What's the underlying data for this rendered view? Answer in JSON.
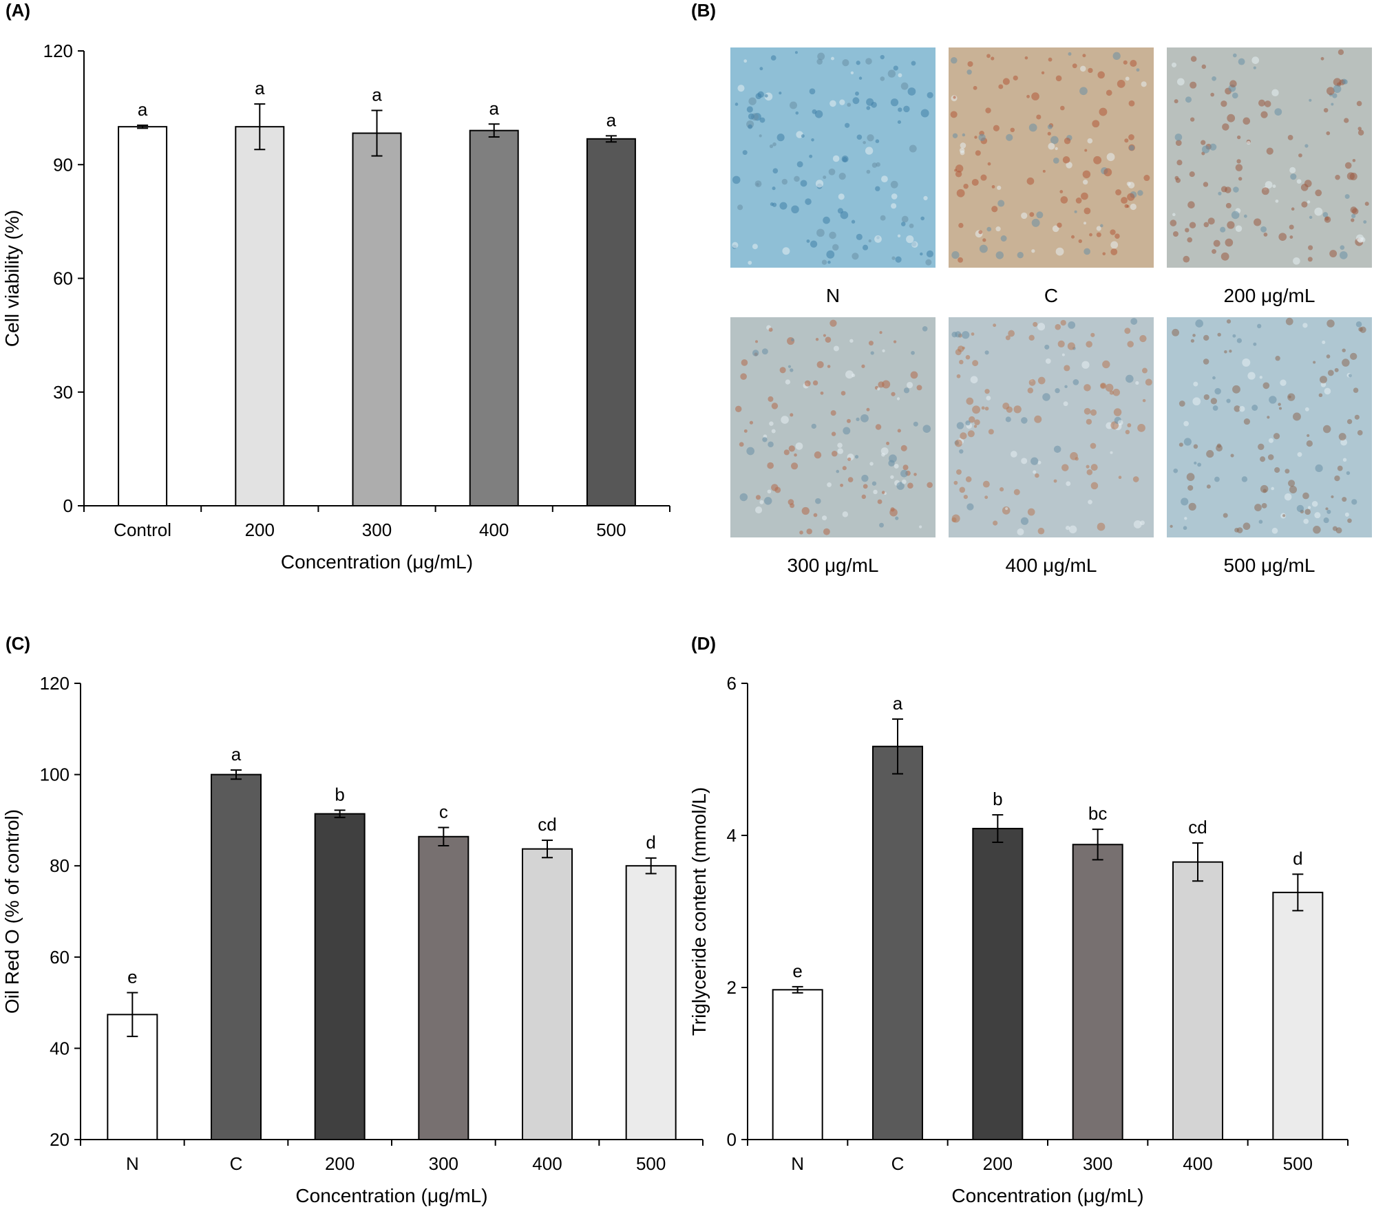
{
  "figure": {
    "panel_labels": [
      "(A)",
      "(B)",
      "(C)",
      "(D)"
    ]
  },
  "micrographs": {
    "captions": [
      "N",
      "C",
      "200 μg/mL",
      "300 μg/mL",
      "400 μg/mL",
      "500 μg/mL"
    ],
    "tints": [
      {
        "base": "#8fbfd6",
        "dots": "#3f7fa8"
      },
      {
        "base": "#c9b296",
        "dots": "#b0593a"
      },
      {
        "base": "#b9c0bd",
        "dots": "#9a5a42"
      },
      {
        "base": "#b6c2c4",
        "dots": "#b36a4a"
      },
      {
        "base": "#b8c6cc",
        "dots": "#b77855"
      },
      {
        "base": "#afc7d2",
        "dots": "#8c6a55"
      }
    ]
  },
  "chart_data": [
    {
      "type": "bar",
      "panel": "(A)",
      "categories": [
        "Control",
        "200",
        "300",
        "400",
        "500"
      ],
      "values": [
        100,
        100,
        98.3,
        99,
        96.8
      ],
      "errors": [
        0.4,
        6,
        6,
        1.7,
        0.8
      ],
      "sig_labels": [
        "a",
        "a",
        "a",
        "a",
        "a"
      ],
      "colors": [
        "#ffffff",
        "#e2e2e2",
        "#adadad",
        "#7f7f7f",
        "#575757"
      ],
      "xlabel": "Concentration (μg/mL)",
      "ylabel": "Cell viability (%)",
      "ylim": [
        0,
        120
      ],
      "yticks": [
        0,
        30,
        60,
        90,
        120
      ]
    },
    {
      "type": "bar",
      "panel": "(C)",
      "categories": [
        "N",
        "C",
        "200",
        "300",
        "400",
        "500"
      ],
      "values": [
        47.4,
        100,
        91.4,
        86.4,
        83.7,
        80
      ],
      "errors": [
        4.8,
        1,
        0.8,
        2,
        1.9,
        1.7
      ],
      "sig_labels": [
        "e",
        "a",
        "b",
        "c",
        "cd",
        "d"
      ],
      "colors": [
        "#ffffff",
        "#5a5a5a",
        "#404040",
        "#777070",
        "#d4d4d4",
        "#ebebeb"
      ],
      "xlabel": "Concentration (μg/mL)",
      "ylabel": "Oil Red O (% of control)",
      "ylim": [
        20,
        120
      ],
      "yticks": [
        20,
        40,
        60,
        80,
        100,
        120
      ]
    },
    {
      "type": "bar",
      "panel": "(D)",
      "categories": [
        "N",
        "C",
        "200",
        "300",
        "400",
        "500"
      ],
      "values": [
        1.97,
        5.17,
        4.09,
        3.88,
        3.65,
        3.25
      ],
      "errors": [
        0.04,
        0.36,
        0.18,
        0.2,
        0.25,
        0.24
      ],
      "sig_labels": [
        "e",
        "a",
        "b",
        "bc",
        "cd",
        "d"
      ],
      "colors": [
        "#ffffff",
        "#5a5a5a",
        "#404040",
        "#777070",
        "#d4d4d4",
        "#ebebeb"
      ],
      "xlabel": "Concentration (μg/mL)",
      "ylabel": "Triglyceride content (mmol/L)",
      "ylim": [
        0,
        6
      ],
      "yticks": [
        0,
        2,
        4,
        6
      ]
    }
  ]
}
